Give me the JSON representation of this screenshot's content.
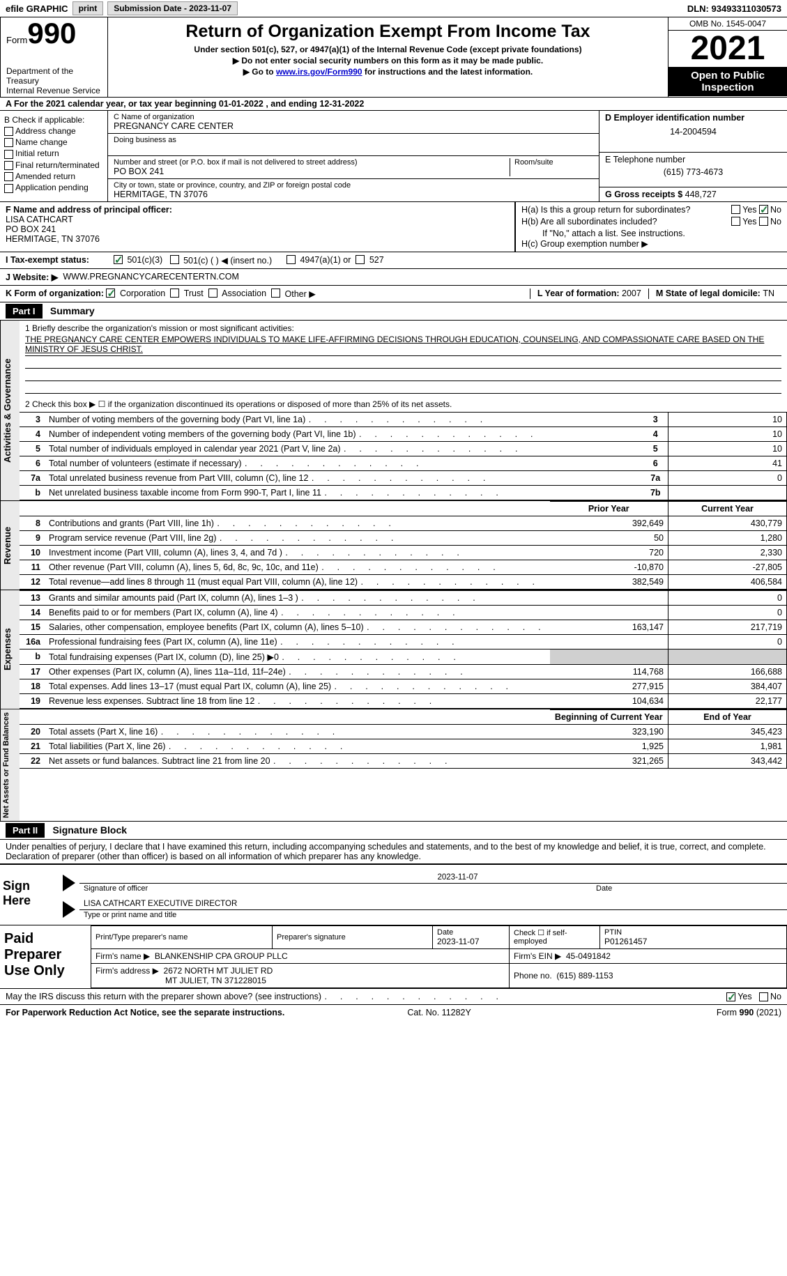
{
  "topbar": {
    "efile": "efile GRAPHIC",
    "print": "print",
    "submission_label": "Submission Date - 2023-11-07",
    "dln_label": "DLN: 93493311030573"
  },
  "header": {
    "form_word": "Form",
    "form_number": "990",
    "dept1": "Department of the Treasury",
    "dept2": "Internal Revenue Service",
    "title": "Return of Organization Exempt From Income Tax",
    "sub1": "Under section 501(c), 527, or 4947(a)(1) of the Internal Revenue Code (except private foundations)",
    "sub2": "Do not enter social security numbers on this form as it may be made public.",
    "sub3_pre": "Go to ",
    "sub3_link": "www.irs.gov/Form990",
    "sub3_post": " for instructions and the latest information.",
    "omb": "OMB No. 1545-0047",
    "year": "2021",
    "open1": "Open to Public",
    "open2": "Inspection"
  },
  "lineA": "A For the 2021 calendar year, or tax year beginning 01-01-2022   , and ending 12-31-2022",
  "colB": {
    "title": "B Check if applicable:",
    "opts": [
      "Address change",
      "Name change",
      "Initial return",
      "Final return/terminated",
      "Amended return",
      "Application pending"
    ]
  },
  "colC": {
    "name_label": "C Name of organization",
    "name": "PREGNANCY CARE CENTER",
    "dba_label": "Doing business as",
    "addr_label": "Number and street (or P.O. box if mail is not delivered to street address)",
    "room_label": "Room/suite",
    "addr": "PO BOX 241",
    "city_label": "City or town, state or province, country, and ZIP or foreign postal code",
    "city": "HERMITAGE, TN  37076"
  },
  "colD": {
    "ein_label": "D Employer identification number",
    "ein": "14-2004594",
    "tel_label": "E Telephone number",
    "tel": "(615) 773-4673",
    "gross_label": "G Gross receipts $",
    "gross": "448,727"
  },
  "rowF": {
    "label": "F  Name and address of principal officer:",
    "name": "LISA CATHCART",
    "addr1": "PO BOX 241",
    "addr2": "HERMITAGE, TN  37076"
  },
  "rowH": {
    "ha": "H(a)  Is this a group return for subordinates?",
    "hb": "H(b)  Are all subordinates included?",
    "hb_note": "If \"No,\" attach a list. See instructions.",
    "hc": "H(c)  Group exemption number ▶",
    "yes": "Yes",
    "no": "No"
  },
  "rowI": {
    "label": "I   Tax-exempt status:",
    "o1": "501(c)(3)",
    "o2": "501(c) (  ) ◀ (insert no.)",
    "o3": "4947(a)(1) or",
    "o4": "527"
  },
  "rowJ": {
    "label": "J   Website: ▶",
    "url": "WWW.PREGNANCYCARECENTERTN.COM"
  },
  "rowK": {
    "label": "K Form of organization:",
    "o1": "Corporation",
    "o2": "Trust",
    "o3": "Association",
    "o4": "Other ▶"
  },
  "rowL": {
    "label": "L Year of formation:",
    "val": "2007"
  },
  "rowM": {
    "label": "M State of legal domicile:",
    "val": "TN"
  },
  "part1": {
    "tag": "Part I",
    "title": "Summary"
  },
  "mission": {
    "label": "1   Briefly describe the organization's mission or most significant activities:",
    "text": "THE PREGNANCY CARE CENTER EMPOWERS INDIVIDUALS TO MAKE LIFE-AFFIRMING DECISIONS THROUGH EDUCATION, COUNSELING, AND COMPASSIONATE CARE BASED ON THE MINISTRY OF JESUS CHRIST."
  },
  "line2": "2   Check this box ▶ ☐ if the organization discontinued its operations or disposed of more than 25% of its net assets.",
  "gov_tab": "Activities & Governance",
  "gov_lines": [
    {
      "num": "3",
      "desc": "Number of voting members of the governing body (Part VI, line 1a)",
      "box": "3",
      "val": "10"
    },
    {
      "num": "4",
      "desc": "Number of independent voting members of the governing body (Part VI, line 1b)",
      "box": "4",
      "val": "10"
    },
    {
      "num": "5",
      "desc": "Total number of individuals employed in calendar year 2021 (Part V, line 2a)",
      "box": "5",
      "val": "10"
    },
    {
      "num": "6",
      "desc": "Total number of volunteers (estimate if necessary)",
      "box": "6",
      "val": "41"
    },
    {
      "num": "7a",
      "desc": "Total unrelated business revenue from Part VIII, column (C), line 12",
      "box": "7a",
      "val": "0"
    },
    {
      "num": "b",
      "desc": "Net unrelated business taxable income from Form 990-T, Part I, line 11",
      "box": "7b",
      "val": ""
    }
  ],
  "rev_tab": "Revenue",
  "col_prior": "Prior Year",
  "col_current": "Current Year",
  "rev_lines": [
    {
      "num": "8",
      "desc": "Contributions and grants (Part VIII, line 1h)",
      "prior": "392,649",
      "curr": "430,779"
    },
    {
      "num": "9",
      "desc": "Program service revenue (Part VIII, line 2g)",
      "prior": "50",
      "curr": "1,280"
    },
    {
      "num": "10",
      "desc": "Investment income (Part VIII, column (A), lines 3, 4, and 7d )",
      "prior": "720",
      "curr": "2,330"
    },
    {
      "num": "11",
      "desc": "Other revenue (Part VIII, column (A), lines 5, 6d, 8c, 9c, 10c, and 11e)",
      "prior": "-10,870",
      "curr": "-27,805"
    },
    {
      "num": "12",
      "desc": "Total revenue—add lines 8 through 11 (must equal Part VIII, column (A), line 12)",
      "prior": "382,549",
      "curr": "406,584"
    }
  ],
  "exp_tab": "Expenses",
  "exp_lines": [
    {
      "num": "13",
      "desc": "Grants and similar amounts paid (Part IX, column (A), lines 1–3 )",
      "prior": "",
      "curr": "0"
    },
    {
      "num": "14",
      "desc": "Benefits paid to or for members (Part IX, column (A), line 4)",
      "prior": "",
      "curr": "0"
    },
    {
      "num": "15",
      "desc": "Salaries, other compensation, employee benefits (Part IX, column (A), lines 5–10)",
      "prior": "163,147",
      "curr": "217,719"
    },
    {
      "num": "16a",
      "desc": "Professional fundraising fees (Part IX, column (A), line 11e)",
      "prior": "",
      "curr": "0"
    },
    {
      "num": "b",
      "desc": "Total fundraising expenses (Part IX, column (D), line 25) ▶0",
      "prior": "shade",
      "curr": "shade"
    },
    {
      "num": "17",
      "desc": "Other expenses (Part IX, column (A), lines 11a–11d, 11f–24e)",
      "prior": "114,768",
      "curr": "166,688"
    },
    {
      "num": "18",
      "desc": "Total expenses. Add lines 13–17 (must equal Part IX, column (A), line 25)",
      "prior": "277,915",
      "curr": "384,407"
    },
    {
      "num": "19",
      "desc": "Revenue less expenses. Subtract line 18 from line 12",
      "prior": "104,634",
      "curr": "22,177"
    }
  ],
  "net_tab": "Net Assets or Fund Balances",
  "col_begin": "Beginning of Current Year",
  "col_end": "End of Year",
  "net_lines": [
    {
      "num": "20",
      "desc": "Total assets (Part X, line 16)",
      "prior": "323,190",
      "curr": "345,423"
    },
    {
      "num": "21",
      "desc": "Total liabilities (Part X, line 26)",
      "prior": "1,925",
      "curr": "1,981"
    },
    {
      "num": "22",
      "desc": "Net assets or fund balances. Subtract line 21 from line 20",
      "prior": "321,265",
      "curr": "343,442"
    }
  ],
  "part2": {
    "tag": "Part II",
    "title": "Signature Block"
  },
  "perjury": "Under penalties of perjury, I declare that I have examined this return, including accompanying schedules and statements, and to the best of my knowledge and belief, it is true, correct, and complete. Declaration of preparer (other than officer) is based on all information of which preparer has any knowledge.",
  "sign": {
    "here": "Sign Here",
    "sig_label": "Signature of officer",
    "date": "2023-11-07",
    "date_label": "Date",
    "name": "LISA CATHCART  EXECUTIVE DIRECTOR",
    "name_label": "Type or print name and title"
  },
  "paid": {
    "title": "Paid Preparer Use Only",
    "h1": "Print/Type preparer's name",
    "h2": "Preparer's signature",
    "h3_label": "Date",
    "h3": "2023-11-07",
    "h4": "Check ☐ if self-employed",
    "h5_label": "PTIN",
    "h5": "P01261457",
    "firm_label": "Firm's name    ▶",
    "firm": "BLANKENSHIP CPA GROUP PLLC",
    "ein_label": "Firm's EIN ▶",
    "ein": "45-0491842",
    "addr_label": "Firm's address ▶",
    "addr1": "2672 NORTH MT JULIET RD",
    "addr2": "MT JULIET, TN  371228015",
    "phone_label": "Phone no.",
    "phone": "(615) 889-1153"
  },
  "may_discuss": "May the IRS discuss this return with the preparer shown above? (see instructions)",
  "footer": {
    "left": "For Paperwork Reduction Act Notice, see the separate instructions.",
    "mid": "Cat. No. 11282Y",
    "right": "Form 990 (2021)"
  }
}
